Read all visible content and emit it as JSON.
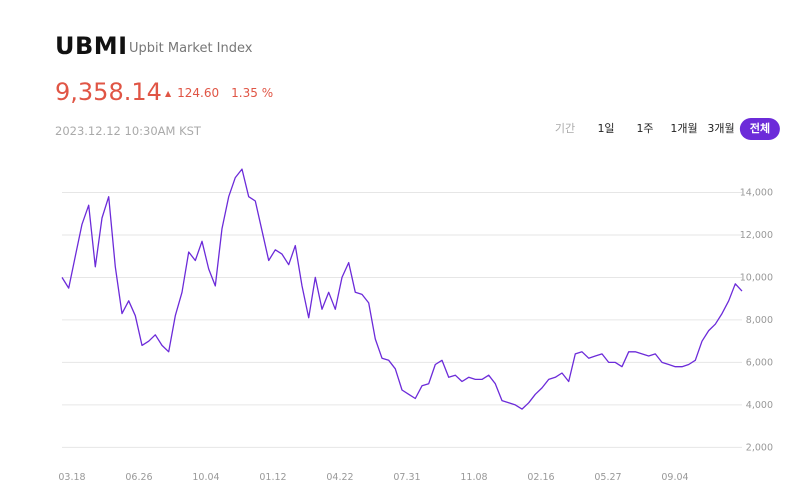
{
  "header": {
    "title": "UBMI",
    "subtitle": "Upbit Market Index",
    "price": "9,358.14",
    "change_value": "124.60",
    "change_percent": "1.35 %",
    "timestamp": "2023.12.12 10:30AM KST"
  },
  "period_tabs": {
    "label": "기간",
    "items": [
      "1일",
      "1주",
      "1개월",
      "3개월",
      "전체"
    ],
    "selected": "전체"
  },
  "colors": {
    "line": "#6c2bd9",
    "positive": "#e05545",
    "active_tab": "#6c2bd9",
    "grid": "#e6e6e6"
  },
  "chart_data": {
    "type": "line",
    "x_tick_labels": [
      "03.18",
      "06.26",
      "10.04",
      "01.12",
      "04.22",
      "07.31",
      "11.08",
      "02.16",
      "05.27",
      "09.04"
    ],
    "y_tick_labels": [
      "2,000",
      "4,000",
      "6,000",
      "8,000",
      "10,000",
      "12,000",
      "14,000"
    ],
    "ylim": [
      1500,
      16000
    ],
    "grid": true,
    "y_axis_position": "right",
    "series": [
      {
        "values": [
          10000,
          9500,
          11000,
          12500,
          13400,
          10500,
          12800,
          13800,
          10500,
          8300,
          8900,
          8200,
          6800,
          7000,
          7300,
          6800,
          6500,
          8200,
          9300,
          11200,
          10800,
          11700,
          10400,
          9600,
          12300,
          13800,
          14700,
          15100,
          13800,
          13600,
          12200,
          10800,
          11300,
          11100,
          10600,
          11500,
          9600,
          8100,
          10000,
          8500,
          9300,
          8500,
          10000,
          10700,
          9300,
          9200,
          8800,
          7100,
          6200,
          6100,
          5700,
          4700,
          4500,
          4300,
          4900,
          5000,
          5900,
          6100,
          5300,
          5400,
          5100,
          5300,
          5200,
          5200,
          5400,
          5000,
          4200,
          4100,
          4000,
          3800,
          4100,
          4500,
          4800,
          5200,
          5300,
          5500,
          5100,
          6400,
          6500,
          6200,
          6300,
          6400,
          6000,
          6000,
          5800,
          6500,
          6500,
          6400,
          6300,
          6400,
          6000,
          5900,
          5800,
          5800,
          5900,
          6100,
          7000,
          7500,
          7800,
          8300,
          8900,
          9700,
          9358
        ]
      }
    ]
  }
}
